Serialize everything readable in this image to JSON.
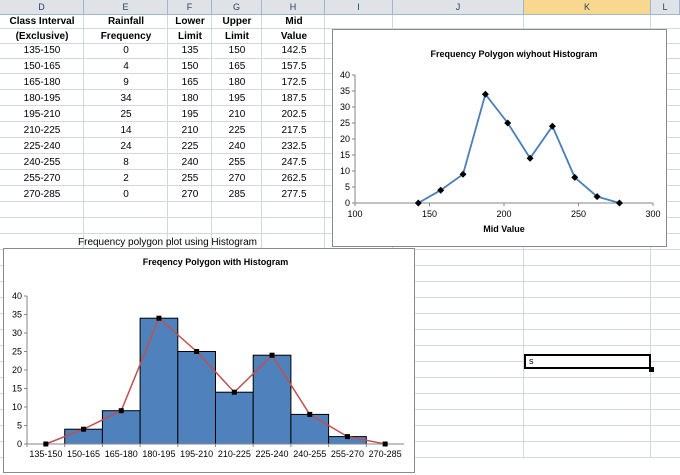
{
  "columns": [
    "D",
    "E",
    "F",
    "G",
    "H",
    "I",
    "J",
    "K",
    "L"
  ],
  "selected_column": "K",
  "table": {
    "headers": [
      [
        "Class Interval",
        "(Exclusive)"
      ],
      [
        "Rainfall",
        "Frequency"
      ],
      [
        "Lower",
        "Limit"
      ],
      [
        "Upper",
        "Limit"
      ],
      [
        "Mid",
        "Value"
      ]
    ],
    "rows": [
      [
        "135-150",
        "0",
        "135",
        "150",
        "142.5"
      ],
      [
        "150-165",
        "4",
        "150",
        "165",
        "157.5"
      ],
      [
        "165-180",
        "9",
        "165",
        "180",
        "172.5"
      ],
      [
        "180-195",
        "34",
        "180",
        "195",
        "187.5"
      ],
      [
        "195-210",
        "25",
        "195",
        "210",
        "202.5"
      ],
      [
        "210-225",
        "14",
        "210",
        "225",
        "217.5"
      ],
      [
        "225-240",
        "24",
        "225",
        "240",
        "232.5"
      ],
      [
        "240-255",
        "8",
        "240",
        "255",
        "247.5"
      ],
      [
        "255-270",
        "2",
        "255",
        "270",
        "262.5"
      ],
      [
        "270-285",
        "0",
        "270",
        "285",
        "277.5"
      ]
    ]
  },
  "caption": "Frequency polygon plot using Histogram",
  "active_cell_value": "s",
  "chart_data": [
    {
      "type": "scatter",
      "title": "Frequency Polygon wiyhout Histogram",
      "xlabel": "Mid Value",
      "ylabel": "",
      "x": [
        142.5,
        157.5,
        172.5,
        187.5,
        202.5,
        217.5,
        232.5,
        247.5,
        262.5,
        277.5
      ],
      "y": [
        0,
        4,
        9,
        34,
        25,
        14,
        24,
        8,
        2,
        0
      ],
      "xlim": [
        100,
        300
      ],
      "ylim": [
        0,
        40
      ],
      "xticks": [
        "100",
        "150",
        "200",
        "250",
        "300"
      ],
      "yticks": [
        "0",
        "5",
        "10",
        "15",
        "20",
        "25",
        "30",
        "35",
        "40"
      ],
      "line_color": "#4a7ebb",
      "marker_color": "#000000",
      "grid": false,
      "legend": "none"
    },
    {
      "type": "bar",
      "title": "Freqency Polygon with Histogram",
      "categories": [
        "135-150",
        "150-165",
        "165-180",
        "180-195",
        "195-210",
        "210-225",
        "225-240",
        "240-255",
        "255-270",
        "270-285"
      ],
      "values": [
        0,
        4,
        9,
        34,
        25,
        14,
        24,
        8,
        2,
        0
      ],
      "overlay_line_values": [
        0,
        4,
        9,
        34,
        25,
        14,
        24,
        8,
        2,
        0
      ],
      "ylim": [
        0,
        40
      ],
      "yticks": [
        "0",
        "5",
        "10",
        "15",
        "20",
        "25",
        "30",
        "35",
        "40"
      ],
      "bar_color": "#4f81bd",
      "line_color": "#c0504d",
      "marker_color": "#000000",
      "xlabel": "",
      "ylabel": "",
      "grid": false,
      "legend": "none"
    }
  ]
}
